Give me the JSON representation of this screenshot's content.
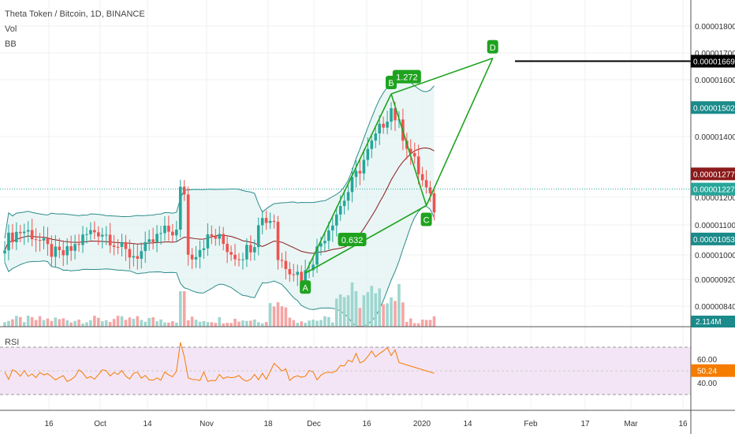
{
  "legend": {
    "title": "Theta Token / Bitcoin, 1D, BINANCE",
    "indicators": [
      "Vol",
      "BB"
    ],
    "rsi_label": "RSI"
  },
  "colors": {
    "up": "#26a69a",
    "down": "#ef5350",
    "bb_band": "#2e8b8b",
    "bb_basis": "#8b1a1a",
    "bb_fill": "#e0f2f1",
    "pattern": "#1fa31f",
    "rsi_line": "#f57c00",
    "rsi_fill": "#f3e5f5",
    "axis_text": "#333333",
    "hline": "#000000"
  },
  "chart_data": {
    "type": "candlestick",
    "symbol": "Theta Token / Bitcoin, 1D, BINANCE",
    "y_ticks": [
      "0.00001800",
      "0.00001700",
      "0.00001600",
      "0.00001400",
      "0.00001200",
      "0.00001100",
      "0.00001000",
      "0.00000920",
      "0.00000840"
    ],
    "y_tick_values": [
      1.8e-05,
      1.7e-05,
      1.6e-05,
      1.4e-05,
      1.2e-05,
      1.1e-05,
      1e-05,
      9.2e-06,
      8.4e-06
    ],
    "x_ticks": [
      "16",
      "Oct",
      "14",
      "Nov",
      "18",
      "Dec",
      "16",
      "2020",
      "14",
      "Feb",
      "17",
      "Mar",
      "16"
    ],
    "price_labels": [
      {
        "text": "0.00001669",
        "value": 1.669e-05,
        "style": "black"
      },
      {
        "text": "0.00001502",
        "value": 1.502e-05,
        "style": "teal"
      },
      {
        "text": "0.00001277",
        "value": 1.277e-05,
        "style": "maroon"
      },
      {
        "text": "0.00001227",
        "value": 1.227e-05,
        "style": "green"
      },
      {
        "text": "0.00001053",
        "value": 1.053e-05,
        "style": "teal"
      }
    ],
    "volume_label": "2.114M",
    "horizontal_line": 1.669e-05,
    "pattern_points": [
      {
        "label": "A",
        "day": 77,
        "price": 9.4e-06
      },
      {
        "label": "B",
        "day": 99,
        "price": 1.55e-05
      },
      {
        "label": "C",
        "day": 108,
        "price": 1.17e-05
      },
      {
        "label": "D",
        "day": 125,
        "price": 1.68e-05
      }
    ],
    "pattern_ratios": [
      {
        "text": "0.632",
        "day": 89,
        "price": 1.05e-05
      },
      {
        "text": "1.272",
        "day": 103,
        "price": 1.61e-05
      }
    ],
    "rsi": {
      "ticks": [
        "60.00",
        "40.00"
      ],
      "tick_values": [
        60,
        40
      ],
      "current_label": "50.24",
      "upper": 70,
      "lower": 30
    }
  }
}
